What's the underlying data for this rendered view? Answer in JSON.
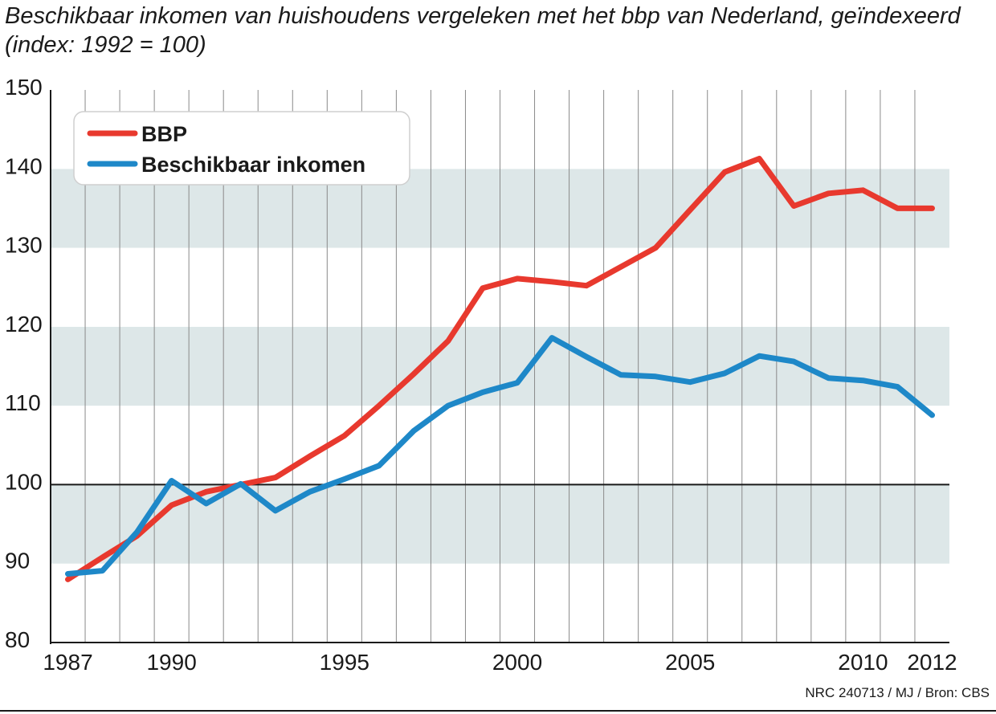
{
  "chart_data": {
    "type": "line",
    "title": "Beschikbaar inkomen van huishoudens vergeleken met het bbp van Nederland, geïndexeerd (index: 1992 = 100)",
    "xlabel": "",
    "ylabel": "",
    "xlim": [
      1986.5,
      2012.5
    ],
    "ylim": [
      80,
      150
    ],
    "x_ticks": [
      1987,
      1990,
      1995,
      2000,
      2005,
      2010,
      2012
    ],
    "y_ticks": [
      80,
      90,
      100,
      110,
      120,
      130,
      140,
      150
    ],
    "reference_line": 100,
    "grid": "vertical lines each year, alternating horizontal bands",
    "legend": "top-left",
    "series": [
      {
        "name": "BBP",
        "color": "#e8392e",
        "x": [
          1987,
          1988,
          1989,
          1990,
          1991,
          1992,
          1993,
          1994,
          1995,
          1996,
          1997,
          1998,
          1999,
          2000,
          2001,
          2002,
          2003,
          2004,
          2005,
          2006,
          2007,
          2008,
          2009,
          2010,
          2011,
          2012
        ],
        "values": [
          88.0,
          90.8,
          93.5,
          97.4,
          99.1,
          100.0,
          100.9,
          103.6,
          106.2,
          110.0,
          114.0,
          118.2,
          124.9,
          126.1,
          125.7,
          125.2,
          127.6,
          130.0,
          134.8,
          139.6,
          141.3,
          135.3,
          136.9,
          137.3,
          135.0,
          135.0
        ]
      },
      {
        "name": "Beschikbaar inkomen",
        "color": "#1e88c8",
        "x": [
          1987,
          1988,
          1989,
          1990,
          1991,
          1992,
          1993,
          1994,
          1995,
          1996,
          1997,
          1998,
          1999,
          2000,
          2001,
          2002,
          2003,
          2004,
          2005,
          2006,
          2007,
          2008,
          2009,
          2010,
          2011,
          2012
        ],
        "values": [
          88.7,
          89.1,
          94.0,
          100.5,
          97.6,
          100.1,
          96.7,
          99.1,
          100.7,
          102.4,
          106.8,
          110.0,
          111.7,
          112.9,
          118.6,
          116.2,
          113.9,
          113.7,
          113.0,
          114.1,
          116.3,
          115.6,
          113.5,
          113.2,
          112.4,
          108.8
        ]
      }
    ]
  },
  "source_text": "NRC 240713 / MJ / Bron: CBS",
  "colors": {
    "band": "#dde7e8",
    "grid": "#8a8a8a",
    "axis": "#1a1a1a"
  }
}
